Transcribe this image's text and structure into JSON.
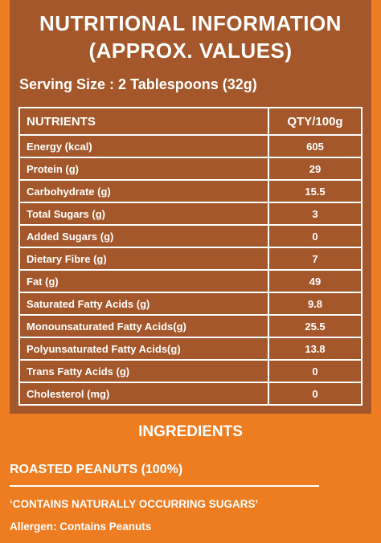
{
  "header": {
    "title_line1": "NUTRITIONAL INFORMATION",
    "title_line2": "(APPROX. VALUES)"
  },
  "serving_size": "Serving Size : 2 Tablespoons (32g)",
  "table": {
    "col_nutrients": "NUTRIENTS",
    "col_qty": "QTY/100g",
    "rows": [
      {
        "name": "Energy (kcal)",
        "value": "605",
        "sub": false
      },
      {
        "name": "Protein (g)",
        "value": "29",
        "sub": false
      },
      {
        "name": "Carbohydrate (g)",
        "value": "15.5",
        "sub": false
      },
      {
        "name": "Total Sugars (g)",
        "value": "3",
        "sub": true
      },
      {
        "name": "Added Sugars (g)",
        "value": "0",
        "sub": true
      },
      {
        "name": "Dietary Fibre (g)",
        "value": "7",
        "sub": true
      },
      {
        "name": "Fat (g)",
        "value": "49",
        "sub": false
      },
      {
        "name": "Saturated Fatty Acids (g)",
        "value": "9.8",
        "sub": true
      },
      {
        "name": "Monounsaturated Fatty Acids(g)",
        "value": "25.5",
        "sub": true
      },
      {
        "name": "Polyunsaturated Fatty Acids(g)",
        "value": "13.8",
        "sub": true
      },
      {
        "name": "Trans Fatty Acids (g)",
        "value": "0",
        "sub": true
      },
      {
        "name": "Cholesterol (mg)",
        "value": "0",
        "sub": true
      }
    ]
  },
  "ingredients": {
    "heading": "INGREDIENTS",
    "list": "ROASTED PEANUTS (100%)",
    "note": "‘CONTAINS NATURALLY OCCURRING SUGARS’",
    "allergen": "Allergen: Contains Peanuts"
  },
  "colors": {
    "background": "#ee7d22",
    "panel": "#a4572a",
    "text": "#ffffff"
  }
}
